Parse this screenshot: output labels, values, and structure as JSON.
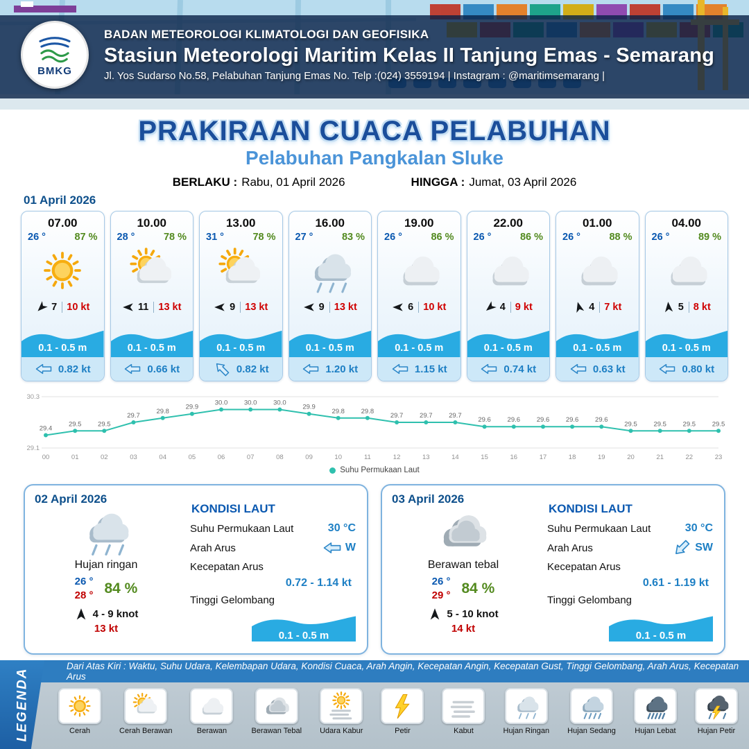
{
  "header": {
    "logo_text": "BMKG",
    "agency": "BADAN METEOROLOGI KLIMATOLOGI DAN GEOFISIKA",
    "station": "Stasiun Meteorologi Maritim Kelas II Tanjung Emas - Semarang",
    "address": "Jl. Yos Sudarso No.58, Pelabuhan Tanjung Emas No. Telp :(024) 3559194 | Instagram : @maritimsemarang |"
  },
  "title": {
    "main": "PRAKIRAAN CUACA PELABUHAN",
    "port": "Pelabuhan Pangkalan Sluke"
  },
  "validity": {
    "berlaku_label": "BERLAKU :",
    "berlaku_value": "Rabu, 01 April 2026",
    "hingga_label": "HINGGA :",
    "hingga_value": "Jumat, 03 April 2026"
  },
  "forecast": {
    "date": "01 April 2026",
    "cards": [
      {
        "time": "07.00",
        "temp": "26 °",
        "humidity": "87 %",
        "icon": "cerah",
        "wind_deg": 135,
        "wind_speed": "7",
        "gust": "10 kt",
        "wave": "0.1 - 0.5 m",
        "current_deg": 0,
        "current": "0.82 kt"
      },
      {
        "time": "10.00",
        "temp": "28 °",
        "humidity": "78 %",
        "icon": "cerah-berawan",
        "wind_deg": 180,
        "wind_speed": "11",
        "gust": "13 kt",
        "wave": "0.1 - 0.5 m",
        "current_deg": 0,
        "current": "0.66 kt"
      },
      {
        "time": "13.00",
        "temp": "31 °",
        "humidity": "78 %",
        "icon": "cerah-berawan",
        "wind_deg": 180,
        "wind_speed": "9",
        "gust": "13 kt",
        "wave": "0.1 - 0.5 m",
        "current_deg": 45,
        "current": "0.82 kt"
      },
      {
        "time": "16.00",
        "temp": "27 °",
        "humidity": "83 %",
        "icon": "hujan-ringan",
        "wind_deg": 180,
        "wind_speed": "9",
        "gust": "13 kt",
        "wave": "0.1 - 0.5 m",
        "current_deg": 0,
        "current": "1.20 kt"
      },
      {
        "time": "19.00",
        "temp": "26 °",
        "humidity": "86 %",
        "icon": "berawan",
        "wind_deg": 180,
        "wind_speed": "6",
        "gust": "10 kt",
        "wave": "0.1 - 0.5 m",
        "current_deg": 0,
        "current": "1.15 kt"
      },
      {
        "time": "22.00",
        "temp": "26 °",
        "humidity": "86 %",
        "icon": "berawan",
        "wind_deg": 140,
        "wind_speed": "4",
        "gust": "9 kt",
        "wave": "0.1 - 0.5 m",
        "current_deg": 0,
        "current": "0.74 kt"
      },
      {
        "time": "01.00",
        "temp": "26 °",
        "humidity": "88 %",
        "icon": "berawan",
        "wind_deg": 255,
        "wind_speed": "4",
        "gust": "7 kt",
        "wave": "0.1 - 0.5 m",
        "current_deg": 0,
        "current": "0.63 kt"
      },
      {
        "time": "04.00",
        "temp": "26 °",
        "humidity": "89 %",
        "icon": "berawan",
        "wind_deg": 265,
        "wind_speed": "5",
        "gust": "8 kt",
        "wave": "0.1 - 0.5 m",
        "current_deg": 0,
        "current": "0.80 kt"
      }
    ]
  },
  "chart_data": {
    "type": "line",
    "series_name": "Suhu Permukaan Laut",
    "x": [
      "00",
      "01",
      "02",
      "03",
      "04",
      "05",
      "06",
      "07",
      "08",
      "09",
      "10",
      "11",
      "12",
      "13",
      "14",
      "15",
      "16",
      "17",
      "18",
      "19",
      "20",
      "21",
      "22",
      "23"
    ],
    "values": [
      29.4,
      29.5,
      29.5,
      29.7,
      29.8,
      29.9,
      30.0,
      30.0,
      30.0,
      29.9,
      29.8,
      29.8,
      29.7,
      29.7,
      29.7,
      29.6,
      29.6,
      29.6,
      29.6,
      29.6,
      29.5,
      29.5,
      29.5,
      29.5
    ],
    "ylim": [
      29.1,
      30.3
    ],
    "color": "#2fc0ae",
    "grid": "top-bottom",
    "legend_position": "bottom"
  },
  "sea_section": {
    "kondisi_label": "KONDISI LAUT",
    "sst_label": "Suhu Permukaan Laut",
    "arah_label": "Arah Arus",
    "kecepatan_label": "Kecepatan Arus",
    "gelombang_label": "Tinggi Gelombang"
  },
  "day_cards": [
    {
      "date": "02 April 2026",
      "icon": "hujan-ringan",
      "condition": "Hujan ringan",
      "temp_min": "26 °",
      "temp_max": "28 °",
      "humidity": "84 %",
      "wind_deg": 270,
      "wind": "4 - 9 knot",
      "gust": "13 kt",
      "sst": "30 °C",
      "arus_dir": "W",
      "arus_deg": 0,
      "arus_speed": "0.72 - 1.14 kt",
      "wave": "0.1 - 0.5 m"
    },
    {
      "date": "03 April 2026",
      "icon": "berawan-tebal",
      "condition": "Berawan tebal",
      "temp_min": "26 °",
      "temp_max": "29 °",
      "humidity": "84 %",
      "wind_deg": 270,
      "wind": "5 - 10 knot",
      "gust": "14 kt",
      "sst": "30 °C",
      "arus_dir": "SW",
      "arus_deg": -45,
      "arus_speed": "0.61 - 1.19 kt",
      "wave": "0.1 - 0.5 m"
    }
  ],
  "legend": {
    "title": "LEGENDA",
    "description": "Dari Atas Kiri : Waktu, Suhu Udara, Kelembapan Udara, Kondisi Cuaca, Arah Angin, Kecepatan Angin, Kecepatan Gust, Tinggi Gelombang, Arah Arus, Kecepatan Arus",
    "items": [
      {
        "label": "Cerah",
        "icon": "cerah"
      },
      {
        "label": "Cerah Berawan",
        "icon": "cerah-berawan"
      },
      {
        "label": "Berawan",
        "icon": "berawan"
      },
      {
        "label": "Berawan Tebal",
        "icon": "berawan-tebal"
      },
      {
        "label": "Udara Kabur",
        "icon": "udara-kabur"
      },
      {
        "label": "Petir",
        "icon": "petir"
      },
      {
        "label": "Kabut",
        "icon": "kabut"
      },
      {
        "label": "Hujan Ringan",
        "icon": "hujan-ringan"
      },
      {
        "label": "Hujan Sedang",
        "icon": "hujan-sedang"
      },
      {
        "label": "Hujan Lebat",
        "icon": "hujan-lebat"
      },
      {
        "label": "Hujan Petir",
        "icon": "hujan-petir"
      }
    ]
  }
}
